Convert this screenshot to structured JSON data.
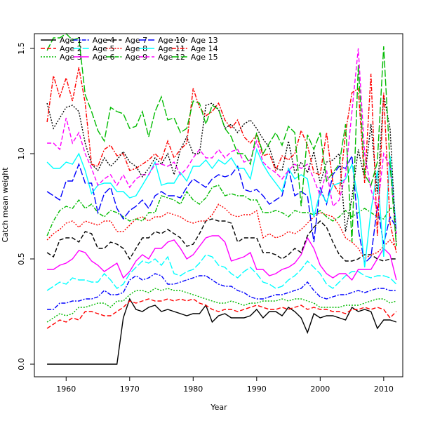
{
  "chart_data": {
    "type": "line",
    "title": "",
    "xlabel": "Year",
    "ylabel": "Catch mean weight",
    "xlim": [
      1955,
      2013
    ],
    "ylim": [
      -0.06,
      1.57
    ],
    "xticks": [
      1960,
      1970,
      1980,
      1990,
      2000,
      2010
    ],
    "xtick_labels": [
      "1960",
      "1970",
      "1980",
      "1990",
      "2000",
      "2010"
    ],
    "yticks": [
      0.0,
      0.5,
      1.0,
      1.5
    ],
    "ytick_labels": [
      "0.0",
      "0.5",
      "1.0",
      "1.5"
    ],
    "grid": false,
    "legend_position": "top-left",
    "x": [
      1957,
      1958,
      1959,
      1960,
      1961,
      1962,
      1963,
      1964,
      1965,
      1966,
      1967,
      1968,
      1969,
      1970,
      1971,
      1972,
      1973,
      1974,
      1975,
      1976,
      1977,
      1978,
      1979,
      1980,
      1981,
      1982,
      1983,
      1984,
      1985,
      1986,
      1987,
      1988,
      1989,
      1990,
      1991,
      1992,
      1993,
      1994,
      1995,
      1996,
      1997,
      1998,
      1999,
      2000,
      2001,
      2002,
      2003,
      2004,
      2005,
      2006,
      2007,
      2008,
      2009,
      2010,
      2011,
      2012
    ],
    "series": [
      {
        "name": "Age 1",
        "color": "#000000",
        "dash": "solid",
        "values": [
          0,
          0,
          0,
          0,
          0,
          0,
          0,
          0,
          0,
          0,
          0,
          0,
          0.22,
          0.31,
          0.26,
          0.25,
          0.27,
          0.28,
          0.25,
          0.26,
          0.25,
          0.24,
          0.23,
          0.24,
          0.24,
          0.28,
          0.2,
          0.23,
          0.24,
          0.22,
          0.22,
          0.22,
          0.23,
          0.26,
          0.22,
          0.25,
          0.25,
          0.23,
          0.27,
          0.25,
          0.22,
          0.15,
          0.24,
          0.22,
          0.23,
          0.23,
          0.22,
          0.21,
          0.27,
          0.25,
          0.26,
          0.25,
          0.17,
          0.21,
          0.21,
          0.2
        ]
      },
      {
        "name": "Age 2",
        "color": "#ff0000",
        "dash": "dashed",
        "values": [
          0.17,
          0.19,
          0.21,
          0.2,
          0.22,
          0.21,
          0.25,
          0.25,
          0.24,
          0.23,
          0.23,
          0.25,
          0.27,
          0.3,
          0.29,
          0.3,
          0.31,
          0.3,
          0.3,
          0.31,
          0.3,
          0.31,
          0.3,
          0.31,
          0.29,
          0.28,
          0.26,
          0.25,
          0.26,
          0.26,
          0.25,
          0.26,
          0.27,
          0.28,
          0.27,
          0.26,
          0.26,
          0.27,
          0.26,
          0.27,
          0.28,
          0.26,
          0.27,
          0.26,
          0.26,
          0.25,
          0.25,
          0.24,
          0.26,
          0.26,
          0.27,
          0.26,
          0.27,
          0.26,
          0.22,
          0.25
        ]
      },
      {
        "name": "Age 3",
        "color": "#00bb00",
        "dash": "dotted",
        "values": [
          0.2,
          0.22,
          0.24,
          0.23,
          0.24,
          0.27,
          0.27,
          0.28,
          0.29,
          0.29,
          0.27,
          0.3,
          0.3,
          0.33,
          0.35,
          0.35,
          0.34,
          0.36,
          0.35,
          0.36,
          0.35,
          0.35,
          0.34,
          0.33,
          0.32,
          0.31,
          0.3,
          0.29,
          0.29,
          0.3,
          0.29,
          0.28,
          0.29,
          0.29,
          0.3,
          0.3,
          0.3,
          0.31,
          0.3,
          0.31,
          0.31,
          0.3,
          0.29,
          0.27,
          0.27,
          0.27,
          0.27,
          0.28,
          0.28,
          0.28,
          0.29,
          0.3,
          0.31,
          0.31,
          0.29,
          0.3
        ]
      },
      {
        "name": "Age 4",
        "color": "#0000ff",
        "dash": "dashdot",
        "values": [
          0.26,
          0.26,
          0.29,
          0.29,
          0.3,
          0.3,
          0.31,
          0.31,
          0.32,
          0.35,
          0.33,
          0.33,
          0.34,
          0.4,
          0.42,
          0.4,
          0.41,
          0.43,
          0.42,
          0.38,
          0.38,
          0.39,
          0.4,
          0.41,
          0.42,
          0.42,
          0.4,
          0.38,
          0.37,
          0.37,
          0.35,
          0.34,
          0.32,
          0.31,
          0.31,
          0.32,
          0.33,
          0.33,
          0.34,
          0.35,
          0.36,
          0.39,
          0.35,
          0.32,
          0.31,
          0.32,
          0.33,
          0.33,
          0.34,
          0.35,
          0.34,
          0.35,
          0.36,
          0.36,
          0.35,
          0.35
        ]
      },
      {
        "name": "Age 5",
        "color": "#00ffff",
        "dash": "longdash",
        "values": [
          0.35,
          0.37,
          0.39,
          0.38,
          0.41,
          0.4,
          0.4,
          0.39,
          0.39,
          0.43,
          0.4,
          0.36,
          0.38,
          0.43,
          0.46,
          0.49,
          0.48,
          0.5,
          0.47,
          0.51,
          0.43,
          0.42,
          0.44,
          0.45,
          0.48,
          0.52,
          0.51,
          0.47,
          0.46,
          0.43,
          0.41,
          0.44,
          0.46,
          0.43,
          0.39,
          0.38,
          0.36,
          0.37,
          0.4,
          0.42,
          0.45,
          0.49,
          0.46,
          0.43,
          0.38,
          0.36,
          0.39,
          0.42,
          0.44,
          0.44,
          0.42,
          0.41,
          0.42,
          0.42,
          0.41,
          0.38
        ]
      },
      {
        "name": "Age 6",
        "color": "#ff00ff",
        "dash": "solid",
        "values": [
          0.45,
          0.45,
          0.47,
          0.48,
          0.5,
          0.54,
          0.53,
          0.49,
          0.47,
          0.44,
          0.46,
          0.48,
          0.41,
          0.44,
          0.49,
          0.52,
          0.5,
          0.55,
          0.55,
          0.58,
          0.59,
          0.55,
          0.5,
          0.52,
          0.56,
          0.6,
          0.61,
          0.61,
          0.58,
          0.49,
          0.5,
          0.51,
          0.53,
          0.45,
          0.45,
          0.42,
          0.43,
          0.45,
          0.46,
          0.48,
          0.52,
          0.6,
          0.55,
          0.47,
          0.43,
          0.41,
          0.43,
          0.43,
          0.4,
          0.45,
          0.45,
          0.45,
          0.5,
          0.55,
          0.52,
          0.4
        ]
      },
      {
        "name": "Age 7",
        "color": "#000000",
        "dash": "dashed",
        "values": [
          0.53,
          0.51,
          0.59,
          0.6,
          0.6,
          0.58,
          0.63,
          0.62,
          0.55,
          0.55,
          0.58,
          0.57,
          0.55,
          0.5,
          0.55,
          0.6,
          0.6,
          0.63,
          0.62,
          0.64,
          0.62,
          0.6,
          0.56,
          0.57,
          0.62,
          0.68,
          0.69,
          0.68,
          0.68,
          0.67,
          0.58,
          0.6,
          0.6,
          0.6,
          0.53,
          0.53,
          0.52,
          0.5,
          0.52,
          0.55,
          0.53,
          0.61,
          0.65,
          0.68,
          0.65,
          0.58,
          0.52,
          0.49,
          0.49,
          0.5,
          0.52,
          0.52,
          0.5,
          0.49,
          0.5,
          0.5
        ]
      },
      {
        "name": "Age 8",
        "color": "#ff0000",
        "dash": "dotted",
        "values": [
          0.59,
          0.62,
          0.64,
          0.67,
          0.68,
          0.65,
          0.68,
          0.67,
          0.66,
          0.68,
          0.68,
          0.63,
          0.63,
          0.66,
          0.69,
          0.7,
          0.68,
          0.7,
          0.7,
          0.72,
          0.71,
          0.7,
          0.68,
          0.67,
          0.68,
          0.68,
          0.71,
          0.76,
          0.74,
          0.71,
          0.7,
          0.71,
          0.71,
          0.73,
          0.6,
          0.62,
          0.6,
          0.61,
          0.63,
          0.62,
          0.64,
          0.67,
          0.7,
          0.72,
          0.71,
          0.7,
          0.66,
          0.6,
          0.58,
          0.55,
          0.5,
          0.52,
          0.53,
          0.56,
          0.59,
          0.55
        ]
      },
      {
        "name": "Age 9",
        "color": "#00bb00",
        "dash": "dashdot",
        "values": [
          0.61,
          0.68,
          0.73,
          0.75,
          0.74,
          0.78,
          0.74,
          0.76,
          0.72,
          0.7,
          0.73,
          0.72,
          0.7,
          0.68,
          0.69,
          0.68,
          0.72,
          0.72,
          0.8,
          0.79,
          0.78,
          0.76,
          0.82,
          0.78,
          0.76,
          0.79,
          0.84,
          0.85,
          0.8,
          0.81,
          0.8,
          0.8,
          0.78,
          0.78,
          0.72,
          0.72,
          0.73,
          0.72,
          0.7,
          0.73,
          0.72,
          0.72,
          0.71,
          0.73,
          0.7,
          0.68,
          0.7,
          0.73,
          0.7,
          0.72,
          0.74,
          0.72,
          0.7,
          0.69,
          0.74,
          0.74
        ]
      },
      {
        "name": "Age 10",
        "color": "#0000ff",
        "dash": "longdash",
        "values": [
          0.82,
          0.8,
          0.78,
          0.87,
          0.87,
          0.95,
          0.86,
          0.86,
          0.72,
          0.81,
          0.84,
          0.74,
          0.69,
          0.73,
          0.75,
          0.78,
          0.74,
          0.8,
          0.82,
          0.8,
          0.8,
          0.79,
          0.84,
          0.88,
          0.86,
          0.84,
          0.88,
          0.9,
          0.89,
          0.9,
          0.94,
          0.83,
          0.82,
          0.83,
          0.8,
          0.76,
          0.78,
          0.8,
          0.93,
          0.8,
          0.82,
          0.8,
          0.58,
          0.84,
          0.76,
          0.9,
          0.94,
          0.93,
          0.99,
          0.64,
          0.48,
          0.51,
          0.75,
          0.57,
          0.7,
          0.65
        ]
      },
      {
        "name": "Age 11",
        "color": "#00ffff",
        "dash": "solid",
        "values": [
          0.96,
          0.93,
          0.93,
          0.96,
          0.95,
          1.0,
          0.92,
          0.81,
          0.85,
          0.86,
          0.86,
          0.82,
          0.82,
          0.79,
          0.8,
          0.85,
          0.9,
          0.96,
          0.85,
          0.86,
          0.86,
          0.91,
          0.87,
          0.94,
          0.94,
          0.97,
          0.93,
          0.97,
          0.95,
          0.98,
          0.93,
          0.93,
          0.88,
          1.02,
          0.95,
          0.9,
          0.86,
          0.82,
          0.93,
          0.88,
          0.9,
          0.88,
          0.7,
          0.82,
          0.77,
          0.85,
          0.86,
          0.88,
          0.95,
          0.78,
          0.46,
          0.73,
          0.92,
          0.51,
          0.99,
          0.64
        ]
      },
      {
        "name": "Age 12",
        "color": "#ff00ff",
        "dash": "dashed",
        "values": [
          1.05,
          1.05,
          1.02,
          1.17,
          1.05,
          1.1,
          1.0,
          0.93,
          0.85,
          0.88,
          0.9,
          0.85,
          0.9,
          0.84,
          0.88,
          0.9,
          0.9,
          0.95,
          0.95,
          0.94,
          0.96,
          0.9,
          0.93,
          0.98,
          1.02,
          0.98,
          0.98,
          1.02,
          0.98,
          1.01,
          1.02,
          0.96,
          0.97,
          1.06,
          0.96,
          0.93,
          0.91,
          0.88,
          0.92,
          0.95,
          0.93,
          0.95,
          0.88,
          0.8,
          0.92,
          0.75,
          0.78,
          0.9,
          1.2,
          1.5,
          1.0,
          0.83,
          0.73,
          1.0,
          0.94,
          0.62
        ]
      },
      {
        "name": "Age 13",
        "color": "#000000",
        "dash": "dotted",
        "values": [
          1.24,
          1.12,
          1.17,
          1.22,
          1.23,
          1.2,
          1.05,
          0.95,
          0.92,
          0.98,
          0.94,
          0.97,
          1.01,
          0.96,
          0.94,
          0.89,
          0.93,
          0.98,
          0.95,
          1.0,
          0.9,
          1.02,
          1.08,
          1.0,
          1.0,
          1.23,
          1.24,
          1.21,
          1.12,
          1.14,
          1.1,
          1.14,
          1.16,
          1.12,
          1.07,
          1.03,
          0.93,
          0.92,
          1.06,
          0.91,
          0.96,
          0.91,
          1.01,
          0.86,
          0.96,
          0.97,
          1.0,
          0.63,
          0.79,
          1.02,
          0.88,
          1.14,
          0.81,
          1.28,
          1.12,
          0.56
        ]
      },
      {
        "name": "Age 14",
        "color": "#ff0000",
        "dash": "dashdot",
        "values": [
          1.15,
          1.37,
          1.27,
          1.36,
          1.25,
          1.41,
          1.24,
          0.95,
          0.94,
          1.02,
          1.04,
          0.99,
          1.0,
          0.92,
          0.93,
          0.95,
          0.97,
          1.0,
          0.97,
          1.06,
          0.98,
          1.02,
          1.05,
          1.31,
          1.22,
          1.18,
          1.2,
          1.24,
          1.16,
          1.12,
          1.16,
          1.08,
          1.05,
          1.09,
          0.99,
          1.0,
          0.92,
          0.99,
          0.97,
          1.0,
          1.11,
          1.04,
          0.91,
          0.9,
          1.1,
          0.86,
          0.81,
          1.1,
          1.29,
          1.31,
          0.86,
          1.38,
          0.61,
          1.29,
          0.67,
          0.53
        ]
      },
      {
        "name": "Age 15",
        "color": "#00bb00",
        "dash": "longdash",
        "values": [
          1.49,
          1.55,
          1.55,
          1.57,
          1.54,
          1.55,
          1.28,
          1.2,
          1.11,
          1.06,
          1.22,
          1.2,
          1.19,
          1.12,
          1.13,
          1.2,
          1.08,
          1.2,
          1.27,
          1.16,
          1.17,
          1.1,
          1.12,
          1.25,
          1.24,
          1.14,
          1.23,
          1.21,
          1.12,
          1.08,
          1.0,
          1.0,
          0.95,
          1.1,
          1.0,
          1.05,
          1.1,
          1.04,
          1.13,
          1.1,
          0.75,
          1.09,
          1.02,
          1.1,
          0.87,
          0.91,
          0.95,
          1.14,
          0.58,
          1.42,
          0.9,
          0.85,
          0.96,
          1.51,
          0.95,
          0.56
        ]
      }
    ]
  }
}
